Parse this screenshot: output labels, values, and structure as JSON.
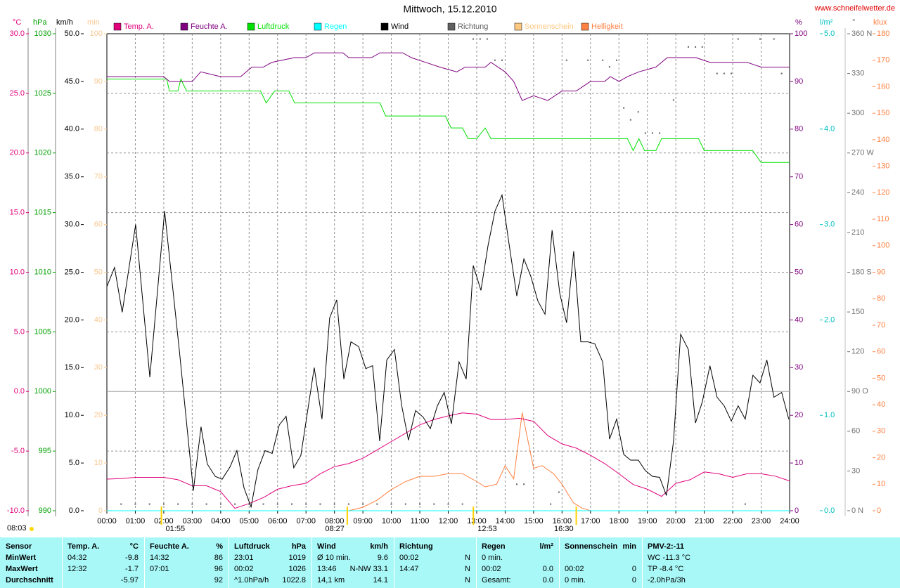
{
  "chart_data": {
    "type": "line",
    "title": "Mittwoch, 15.12.2010",
    "source": "www.schneifelwetter.de",
    "xlim": [
      0,
      24
    ],
    "xticks": [
      {
        "value": 0,
        "label": "00:00"
      },
      {
        "value": 1,
        "label": "01:00"
      },
      {
        "value": 2,
        "label": "02:00"
      },
      {
        "value": 3,
        "label": "03:00"
      },
      {
        "value": 4,
        "label": "04:00"
      },
      {
        "value": 5,
        "label": "05:00"
      },
      {
        "value": 6,
        "label": "06:00"
      },
      {
        "value": 7,
        "label": "07:00"
      },
      {
        "value": 8,
        "label": "08:00"
      },
      {
        "value": 9,
        "label": "09:00"
      },
      {
        "value": 10,
        "label": "10:00"
      },
      {
        "value": 11,
        "label": "11:00"
      },
      {
        "value": 12,
        "label": "12:00"
      },
      {
        "value": 13,
        "label": "13:00"
      },
      {
        "value": 14,
        "label": "14:00"
      },
      {
        "value": 15,
        "label": "15:00"
      },
      {
        "value": 16,
        "label": "16:00"
      },
      {
        "value": 17,
        "label": "17:00"
      },
      {
        "value": 18,
        "label": "18:00"
      },
      {
        "value": 19,
        "label": "19:00"
      },
      {
        "value": 20,
        "label": "20:00"
      },
      {
        "value": 21,
        "label": "21:00"
      },
      {
        "value": 22,
        "label": "22:00"
      },
      {
        "value": 23,
        "label": "23:00"
      },
      {
        "value": 24,
        "label": "24:00"
      }
    ],
    "grid": true,
    "grid_axis": "temp",
    "axes": {
      "temp": {
        "label": "°C",
        "side": "left",
        "color": "#e0007c",
        "ylim": [
          -10,
          30
        ],
        "yticks": [
          {
            "value": -10,
            "label": "-10.0"
          },
          {
            "value": -5,
            "label": "-5.0"
          },
          {
            "value": 0,
            "label": "0.0"
          },
          {
            "value": 5,
            "label": "5.0"
          },
          {
            "value": 10,
            "label": "10.0"
          },
          {
            "value": 15,
            "label": "15.0"
          },
          {
            "value": 20,
            "label": "20.0"
          },
          {
            "value": 25,
            "label": "25.0"
          },
          {
            "value": 30,
            "label": "30.0"
          }
        ]
      },
      "pressure": {
        "label": "hPa",
        "side": "left",
        "color": "#00a000",
        "ylim": [
          990,
          1030
        ],
        "yticks": [
          990,
          995,
          1000,
          1005,
          1010,
          1015,
          1020,
          1025,
          1030
        ]
      },
      "wind": {
        "label": "km/h",
        "side": "left",
        "color": "#000000",
        "ylim": [
          0,
          50
        ],
        "yticks": [
          {
            "value": 0,
            "label": "0.0"
          },
          {
            "value": 5,
            "label": "5.0"
          },
          {
            "value": 10,
            "label": "10.0"
          },
          {
            "value": 15,
            "label": "15.0"
          },
          {
            "value": 20,
            "label": "20.0"
          },
          {
            "value": 25,
            "label": "25.0"
          },
          {
            "value": 30,
            "label": "30.0"
          },
          {
            "value": 35,
            "label": "35.0"
          },
          {
            "value": 40,
            "label": "40.0"
          },
          {
            "value": 45,
            "label": "45.0"
          },
          {
            "value": 50,
            "label": "50.0"
          }
        ]
      },
      "sun": {
        "label": "min",
        "side": "left",
        "color": "#f8c890",
        "ylim": [
          0,
          100
        ],
        "yticks": [
          0,
          10,
          20,
          30,
          40,
          50,
          60,
          70,
          80,
          90,
          100
        ]
      },
      "humidity": {
        "label": "%",
        "side": "right",
        "color": "#800080",
        "ylim": [
          0,
          100
        ],
        "yticks": [
          0,
          10,
          20,
          30,
          40,
          50,
          60,
          70,
          80,
          90,
          100
        ]
      },
      "rain": {
        "label": "l/m²",
        "side": "right",
        "color": "#00c0c0",
        "ylim": [
          0,
          5
        ],
        "yticks": [
          {
            "value": 0,
            "label": "0.0"
          },
          {
            "value": 1,
            "label": "1.0"
          },
          {
            "value": 2,
            "label": "2.0"
          },
          {
            "value": 3,
            "label": "3.0"
          },
          {
            "value": 4,
            "label": "4.0"
          },
          {
            "value": 5,
            "label": "5.0"
          }
        ]
      },
      "direction": {
        "label": "°",
        "side": "right",
        "color": "#707070",
        "ylim": [
          0,
          360
        ],
        "yticks": [
          {
            "value": 0,
            "label": "0 N"
          },
          30,
          60,
          {
            "value": 90,
            "label": "90 O"
          },
          120,
          150,
          {
            "value": 180,
            "label": "180 S"
          },
          210,
          240,
          {
            "value": 270,
            "label": "270 W"
          },
          300,
          330,
          {
            "value": 360,
            "label": "360 N"
          }
        ]
      },
      "brightness": {
        "label": "klux",
        "side": "right",
        "color": "#ff8040",
        "ylim": [
          0,
          180
        ],
        "yticks": [
          0,
          10,
          20,
          30,
          40,
          50,
          60,
          70,
          80,
          90,
          100,
          110,
          120,
          130,
          140,
          150,
          160,
          170,
          180
        ]
      }
    },
    "series": [
      {
        "name": "Temp. A.",
        "color": "#e0007c",
        "axis": "temp",
        "x": [
          0,
          0.5,
          1,
          1.5,
          2,
          2.5,
          3,
          3.5,
          4,
          4.5,
          5,
          5.5,
          6,
          6.5,
          7,
          7.5,
          8,
          8.5,
          9,
          9.5,
          10,
          10.5,
          11,
          11.5,
          12,
          12.5,
          13,
          13.5,
          14,
          14.5,
          15,
          15.5,
          16,
          16.5,
          17,
          17.5,
          18,
          18.5,
          19,
          19.5,
          20,
          20.5,
          21,
          21.5,
          22,
          22.5,
          23,
          23.5,
          24
        ],
        "values": [
          -7.35,
          -7.3,
          -7.2,
          -7.2,
          -7.2,
          -7.4,
          -7.9,
          -7.9,
          -8.4,
          -9.8,
          -9.4,
          -8.9,
          -8.2,
          -7.9,
          -7.7,
          -6.9,
          -6.3,
          -6.05,
          -5.6,
          -4.9,
          -4.2,
          -3.5,
          -2.8,
          -2.35,
          -2.05,
          -1.8,
          -1.9,
          -2.35,
          -2.35,
          -2.25,
          -2.5,
          -3.7,
          -4.4,
          -4.75,
          -5.35,
          -6.05,
          -6.9,
          -7.8,
          -8.2,
          -8.8,
          -7.7,
          -7.4,
          -6.75,
          -6.9,
          -7.2,
          -6.9,
          -6.9,
          -7.1,
          -7.5
        ]
      },
      {
        "name": "Feuchte A.",
        "color": "#800080",
        "axis": "humidity",
        "x": [
          0,
          2,
          2.2,
          3,
          3.3,
          4,
          4.7,
          5.1,
          5.5,
          5.8,
          6.6,
          7,
          7.3,
          8.3,
          8.5,
          9.3,
          9.6,
          10.4,
          10.7,
          11.2,
          11.7,
          12.3,
          12.6,
          13.3,
          13.5,
          14,
          14.3,
          14.6,
          15,
          15.5,
          16,
          16.5,
          17,
          17.5,
          17.7,
          18,
          18.3,
          18.7,
          19.3,
          19.7,
          20.7,
          21.2,
          22.5,
          23,
          24
        ],
        "values": [
          91,
          91,
          90,
          90,
          92,
          91,
          91,
          93,
          93,
          94,
          95,
          95,
          96,
          96,
          95,
          95,
          96,
          96,
          95,
          94,
          93,
          92,
          93,
          93,
          94,
          92,
          90,
          86,
          87,
          86,
          88,
          88,
          90,
          90,
          91,
          90,
          91,
          92,
          93,
          95,
          95,
          94,
          94,
          93,
          93
        ]
      },
      {
        "name": "Luftdruck",
        "color": "#00e000",
        "axis": "pressure",
        "x": [
          0,
          2.1,
          2.2,
          2.5,
          2.6,
          2.8,
          5.4,
          5.6,
          5.9,
          6.4,
          6.6,
          9.6,
          9.8,
          11.9,
          12.1,
          12.5,
          12.7,
          13,
          13.3,
          13.5,
          18.3,
          18.5,
          18.7,
          18.9,
          19.3,
          19.5,
          20.8,
          21,
          22.7,
          23,
          24
        ],
        "values": [
          1026.2,
          1026.2,
          1025.2,
          1025.2,
          1026.2,
          1025.2,
          1025.2,
          1024.2,
          1025.2,
          1025.2,
          1024.2,
          1024.2,
          1023.1,
          1023.1,
          1022.1,
          1022.1,
          1021.2,
          1021.2,
          1022.1,
          1021.2,
          1021.2,
          1020.2,
          1021.2,
          1020.2,
          1020.2,
          1021.2,
          1021.2,
          1020.2,
          1020.2,
          1019.2,
          1019.2
        ]
      },
      {
        "name": "Regen",
        "color": "#00ffff",
        "axis": "rain",
        "x": [
          0,
          24
        ],
        "values": [
          0,
          0
        ]
      },
      {
        "name": "Wind",
        "color": "#000000",
        "axis": "wind",
        "x": [
          0,
          0.27,
          0.54,
          1.01,
          1.51,
          2.03,
          2.55,
          3.04,
          3.31,
          3.53,
          3.81,
          4.05,
          4.33,
          4.57,
          4.82,
          5.07,
          5.31,
          5.56,
          5.81,
          6.06,
          6.3,
          6.57,
          6.82,
          7.29,
          7.56,
          7.83,
          8.08,
          8.33,
          8.58,
          8.85,
          9.1,
          9.34,
          9.59,
          9.84,
          10.11,
          10.36,
          10.6,
          10.85,
          11.12,
          11.37,
          11.62,
          11.86,
          12.11,
          12.38,
          12.63,
          12.88,
          13.15,
          13.4,
          13.64,
          13.89,
          14.14,
          14.41,
          14.66,
          14.9,
          15.15,
          15.4,
          15.65,
          15.92,
          16.16,
          16.41,
          16.66,
          16.91,
          17.15,
          17.43,
          17.67,
          17.92,
          18.17,
          18.41,
          18.68,
          18.93,
          19.18,
          19.43,
          19.67,
          19.92,
          20.17,
          20.44,
          20.69,
          20.93,
          21.2,
          21.45,
          21.7,
          21.95,
          22.19,
          22.44,
          22.71,
          22.96,
          23.2,
          23.45,
          23.72,
          23.97
        ],
        "values": [
          23.5,
          25.5,
          20.8,
          30.0,
          14.0,
          31.4,
          16.7,
          2.1,
          8.8,
          4.9,
          3.6,
          3.3,
          4.6,
          6.3,
          2.4,
          0.4,
          4.3,
          6.3,
          6.0,
          9.0,
          9.9,
          4.5,
          5.8,
          15.0,
          9.6,
          20.2,
          22.1,
          13.8,
          17.7,
          17.2,
          14.9,
          15.2,
          7.3,
          15.8,
          16.9,
          11.1,
          7.4,
          10.5,
          9.8,
          8.6,
          11.0,
          12.4,
          9.1,
          15.6,
          13.8,
          25.7,
          23.1,
          27.8,
          31.4,
          33.1,
          27.9,
          22.5,
          26.4,
          24.6,
          22.0,
          20.6,
          29.4,
          22.8,
          19.7,
          27.2,
          17.7,
          17.7,
          17.5,
          15.6,
          7.5,
          9.6,
          5.9,
          5.3,
          5.3,
          4.2,
          3.6,
          3.5,
          1.6,
          7.3,
          18.5,
          16.9,
          9.2,
          11.4,
          15.2,
          11.9,
          11.0,
          9.4,
          11.0,
          9.6,
          14.2,
          13.4,
          15.8,
          11.9,
          12.4,
          9.6
        ]
      },
      {
        "name": "Richtung",
        "color": "#606060",
        "axis": "direction",
        "type": "scatter",
        "x": [
          0.5,
          1,
          1.5,
          2,
          2.5,
          3,
          3.5,
          4,
          4.5,
          5,
          5.5,
          6,
          6.5,
          7,
          7.5,
          8,
          8.5,
          9,
          9.5,
          10,
          10.5,
          11,
          11.5,
          12,
          12.5,
          12.88,
          13.12,
          13.37,
          13.64,
          13.89,
          14.41,
          14.66,
          15.6,
          15.89,
          16.16,
          16.91,
          17.43,
          17.67,
          17.92,
          18.17,
          18.41,
          18.68,
          18.93,
          19.18,
          19.43,
          19.92,
          20.44,
          20.69,
          20.93,
          21.45,
          21.7,
          21.95,
          22.19,
          22.44,
          22.96,
          23.45,
          23.72
        ],
        "values": [
          5,
          5,
          5,
          5,
          5,
          5,
          5,
          5,
          5,
          5,
          5,
          5,
          5,
          5,
          5,
          5,
          5,
          5,
          5,
          5,
          5,
          5,
          5,
          5,
          5,
          356,
          356,
          356,
          340,
          340,
          20,
          20,
          5,
          14,
          340,
          340,
          340,
          335,
          340,
          304,
          295,
          301,
          285,
          285,
          285,
          310,
          350,
          350,
          350,
          330,
          330,
          330,
          356,
          5,
          356,
          356,
          330
        ]
      },
      {
        "name": "Sonnenschein",
        "color": "#ffc880",
        "axis": "sun",
        "x": [
          0,
          24
        ],
        "values": [
          0,
          0
        ]
      },
      {
        "name": "Helligkeit",
        "color": "#ff8040",
        "axis": "brightness",
        "x": [
          0,
          8.5,
          9,
          9.5,
          10,
          10.5,
          11,
          11.5,
          12,
          12.5,
          13,
          13.3,
          13.7,
          14,
          14.3,
          14.6,
          15,
          15.3,
          15.7,
          16,
          16.4,
          16.7,
          17,
          24
        ],
        "values": [
          0,
          0,
          1.3,
          4,
          8,
          11,
          13,
          13,
          14,
          14,
          11,
          9,
          10,
          17,
          12,
          37,
          16,
          17,
          14,
          10,
          3,
          1,
          0,
          0
        ]
      }
    ],
    "day_length": "08:03",
    "markers": [
      "01:55",
      "08:27",
      "12:53",
      "16:30"
    ]
  },
  "table": {
    "header": [
      [
        "Sensor"
      ],
      [
        "Temp. A.",
        "°C"
      ],
      [
        "Feuchte A.",
        "%"
      ],
      [
        "Luftdruck",
        "hPa"
      ],
      [
        "Wind",
        "km/h"
      ],
      [
        "Richtung"
      ],
      [
        "Regen",
        "l/m²"
      ],
      [
        "Sonnenschein",
        "min"
      ],
      [
        "PMV-2:-11"
      ]
    ],
    "rows": [
      [
        [
          "MinWert"
        ],
        [
          "04:32",
          "-9.8"
        ],
        [
          "14:32",
          "86"
        ],
        [
          "23:01",
          "1019"
        ],
        [
          "Ø 10 min.",
          "9.6"
        ],
        [
          "00:02",
          "N"
        ],
        [
          "0 min.",
          null
        ],
        [
          null,
          null
        ],
        [
          "WC -11.3 °C"
        ]
      ],
      [
        [
          "MaxWert"
        ],
        [
          "12:32",
          "-1.7"
        ],
        [
          "07:01",
          "96"
        ],
        [
          "00:02",
          "1026"
        ],
        [
          "13:46",
          "N-NW 33.1"
        ],
        [
          "14:47",
          "N"
        ],
        [
          "00:02",
          "0.0"
        ],
        [
          "00:02",
          "0"
        ],
        [
          "TP -8.4 °C"
        ]
      ],
      [
        [
          "Durchschnitt"
        ],
        [
          null,
          "-5.97"
        ],
        [
          null,
          "92"
        ],
        [
          "^1.0hPa/h",
          "1022.8"
        ],
        [
          "14,1 km",
          "14.1"
        ],
        [
          null,
          "N"
        ],
        [
          "Gesamt:",
          "0.0"
        ],
        [
          "0 min.",
          "0"
        ],
        [
          "-2.0hPa/3h"
        ]
      ]
    ]
  }
}
